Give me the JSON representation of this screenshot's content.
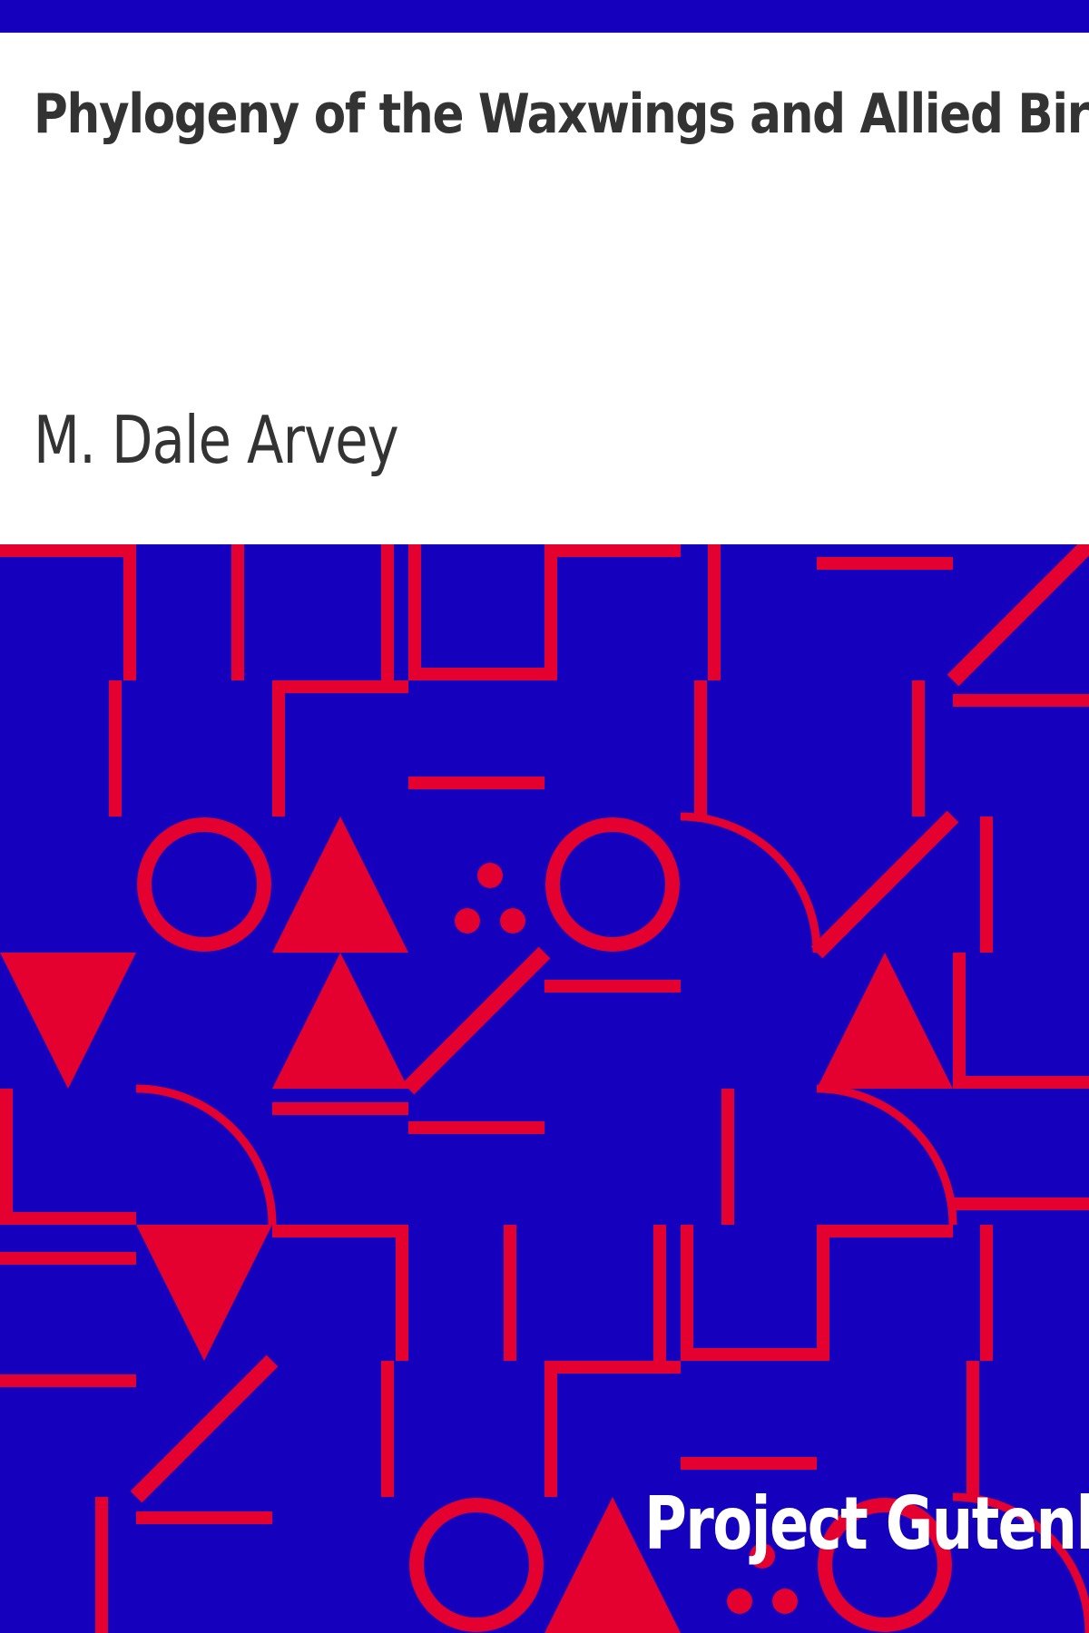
{
  "cover": {
    "title": "Phylogeny of the Waxwings and Allied Birds",
    "author": "M. Dale Arvey",
    "publisher": "Project Gutenberg"
  },
  "colors": {
    "background": "#ffffff",
    "band": "#1400bd",
    "pattern": "#e4002f",
    "title_text": "#333333",
    "publisher_text": "#ffffff"
  }
}
